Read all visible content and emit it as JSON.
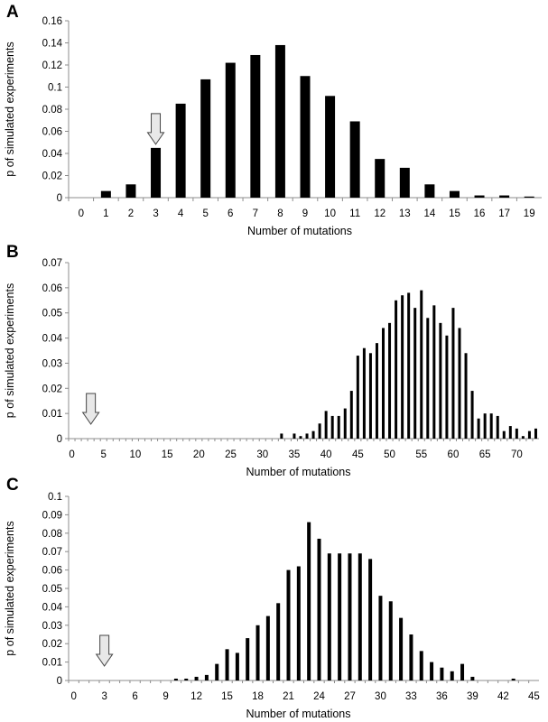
{
  "chart_data": [
    {
      "panel": "A",
      "type": "bar",
      "xlabel": "Number of mutations",
      "ylabel": "p of simulated experiments",
      "ylim": [
        0,
        0.16
      ],
      "yticks": [
        "0",
        "0.02",
        "0.04",
        "0.06",
        "0.08",
        "0.1",
        "0.12",
        "0.14",
        "0.16"
      ],
      "categories": [
        "0",
        "1",
        "2",
        "3",
        "4",
        "5",
        "6",
        "7",
        "8",
        "9",
        "10",
        "11",
        "12",
        "13",
        "14",
        "15",
        "16",
        "17",
        "19"
      ],
      "values": [
        0,
        0.006,
        0.012,
        0.045,
        0.085,
        0.107,
        0.122,
        0.129,
        0.138,
        0.11,
        0.092,
        0.069,
        0.035,
        0.027,
        0.012,
        0.006,
        0.002,
        0.002,
        0.001
      ],
      "arrow_at": "3",
      "grid": false,
      "legend": "none"
    },
    {
      "panel": "B",
      "type": "bar",
      "xlabel": "Number of mutations",
      "ylabel": "p of simulated experiments",
      "ylim": [
        0,
        0.07
      ],
      "yticks": [
        "0",
        "0.01",
        "0.02",
        "0.03",
        "0.04",
        "0.05",
        "0.06",
        "0.07"
      ],
      "x_start": 0,
      "x_end": 73,
      "xticks": [
        "0",
        "5",
        "10",
        "15",
        "20",
        "25",
        "30",
        "35",
        "40",
        "45",
        "50",
        "55",
        "60",
        "65",
        "70"
      ],
      "x": [
        33,
        35,
        36,
        37,
        38,
        39,
        40,
        41,
        42,
        43,
        44,
        45,
        46,
        47,
        48,
        49,
        50,
        51,
        52,
        53,
        54,
        55,
        56,
        57,
        58,
        59,
        60,
        61,
        62,
        63,
        64,
        65,
        66,
        67,
        68,
        69,
        70,
        71,
        72,
        73
      ],
      "values": [
        0.002,
        0.002,
        0.001,
        0.002,
        0.003,
        0.006,
        0.011,
        0.009,
        0.009,
        0.012,
        0.019,
        0.033,
        0.036,
        0.034,
        0.038,
        0.044,
        0.046,
        0.055,
        0.057,
        0.058,
        0.052,
        0.059,
        0.048,
        0.053,
        0.046,
        0.041,
        0.052,
        0.044,
        0.034,
        0.019,
        0.008,
        0.01,
        0.01,
        0.009,
        0.003,
        0.005,
        0.004,
        0.001,
        0.003,
        0.004
      ],
      "arrow_at": 3,
      "grid": false,
      "legend": "none"
    },
    {
      "panel": "C",
      "type": "bar",
      "xlabel": "Number of mutations",
      "ylabel": "p of simulated experiments",
      "ylim": [
        0,
        0.1
      ],
      "yticks": [
        "0",
        "0.01",
        "0.02",
        "0.03",
        "0.04",
        "0.05",
        "0.06",
        "0.07",
        "0.08",
        "0.09",
        "0.1"
      ],
      "x_start": 0,
      "x_end": 45,
      "xticks": [
        "0",
        "3",
        "6",
        "9",
        "12",
        "15",
        "18",
        "21",
        "24",
        "27",
        "30",
        "33",
        "36",
        "39",
        "42",
        "45"
      ],
      "x": [
        10,
        11,
        12,
        13,
        14,
        15,
        16,
        17,
        18,
        19,
        20,
        21,
        22,
        23,
        24,
        25,
        26,
        27,
        28,
        29,
        30,
        31,
        32,
        33,
        34,
        35,
        36,
        37,
        38,
        39,
        43
      ],
      "values": [
        0.001,
        0.001,
        0.002,
        0.003,
        0.009,
        0.017,
        0.015,
        0.023,
        0.03,
        0.035,
        0.042,
        0.06,
        0.062,
        0.086,
        0.077,
        0.069,
        0.069,
        0.069,
        0.069,
        0.066,
        0.046,
        0.043,
        0.034,
        0.025,
        0.016,
        0.01,
        0.007,
        0.005,
        0.009,
        0.002,
        0.001
      ],
      "arrow_at": 3,
      "grid": false,
      "legend": "none"
    }
  ]
}
